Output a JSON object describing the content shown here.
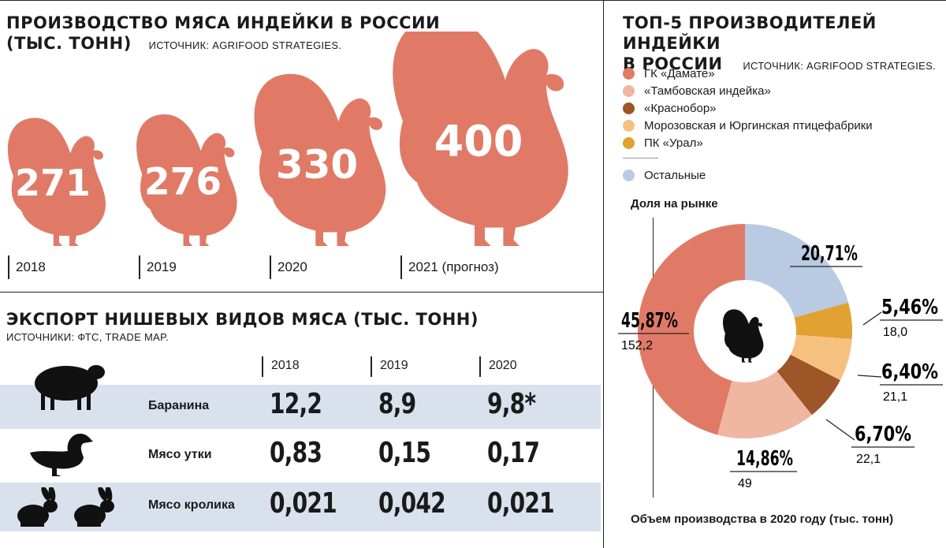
{
  "colors": {
    "turkey": "#e07a66",
    "band": "#d9e1ec",
    "damate": "#e07a66",
    "tambov": "#efb6a2",
    "krasnobor": "#9e5528",
    "morozov": "#f6c07f",
    "ural": "#e3a033",
    "others": "#b8cbe2"
  },
  "production": {
    "title_line1": "ПРОИЗВОДСТВО МЯСА ИНДЕЙКИ В РОССИИ",
    "title_line2": "(ТЫС. ТОНН)",
    "source": "ИСТОЧНИК: AGRIFOOD STRATEGIES.",
    "icon": "turkey-icon"
  },
  "export": {
    "title": "ЭКСПОРТ НИШЕВЫХ ВИДОВ МЯСА (ТЫС. ТОНН)",
    "source": "ИСТОЧНИКИ: ФТС, TRADE MAP.",
    "years": [
      "2018",
      "2019",
      "2020"
    ],
    "rows": [
      {
        "label": "Баранина",
        "icon": "sheep-icon",
        "values": [
          "12,2",
          "8,9",
          "9,8*"
        ]
      },
      {
        "label": "Мясо утки",
        "icon": "duck-icon",
        "values": [
          "0,83",
          "0,15",
          "0,17"
        ]
      },
      {
        "label": "Мясо кролика",
        "icon": "rabbit-icon",
        "values": [
          "0,021",
          "0,042",
          "0,021"
        ]
      }
    ]
  },
  "top5": {
    "title_line1": "ТОП-5 ПРОИЗВОДИТЕЛЕЙ ИНДЕЙКИ",
    "title_line2": "В РОССИИ",
    "source": "ИСТОЧНИК: AGRIFOOD STRATEGIES.",
    "share_label": "Доля на рынке",
    "volume_label": "Объем производства в 2020 году (тыс. тонн)",
    "legend": [
      "ГК «Дамате»",
      "«Тамбовская индейка»",
      "«Краснобор»",
      "Морозовская и Юргинская птицефабрики",
      "ПК «Урал»",
      "Остальные"
    ],
    "center_icon": "turkey-icon"
  },
  "chart_data": [
    {
      "type": "bar",
      "categories": [
        "2018",
        "2019",
        "2020",
        "2021 (прогноз)"
      ],
      "values": [
        271,
        276,
        330,
        400
      ],
      "value_labels": [
        "271",
        "276",
        "330",
        "400"
      ],
      "title": "ПРОИЗВОДСТВО МЯСА ИНДЕЙКИ В РОССИИ (ТЫС. ТОНН)",
      "xlabel": "",
      "ylabel": ""
    },
    {
      "type": "pie",
      "title": "ТОП-5 ПРОИЗВОДИТЕЛЕЙ ИНДЕЙКИ В РОССИИ",
      "slices": [
        {
          "name": "ГК «Дамате»",
          "share": 45.87,
          "share_label": "45,87%",
          "volume": 152.2,
          "volume_label": "152,2",
          "color": "#e07a66"
        },
        {
          "name": "«Тамбовская индейка»",
          "share": 14.86,
          "share_label": "14,86%",
          "volume": 49,
          "volume_label": "49",
          "color": "#efb6a2"
        },
        {
          "name": "«Краснобор»",
          "share": 6.7,
          "share_label": "6,70%",
          "volume": 22.1,
          "volume_label": "22,1",
          "color": "#9e5528"
        },
        {
          "name": "Морозовская и Юргинская птицефабрики",
          "share": 6.4,
          "share_label": "6,40%",
          "volume": 21.1,
          "volume_label": "21,1",
          "color": "#f6c07f"
        },
        {
          "name": "ПК «Урал»",
          "share": 5.46,
          "share_label": "5,46%",
          "volume": 18.0,
          "volume_label": "18,0",
          "color": "#e3a033"
        },
        {
          "name": "Остальные",
          "share": 20.71,
          "share_label": "20,71%",
          "color": "#b8cbe2"
        }
      ]
    }
  ]
}
